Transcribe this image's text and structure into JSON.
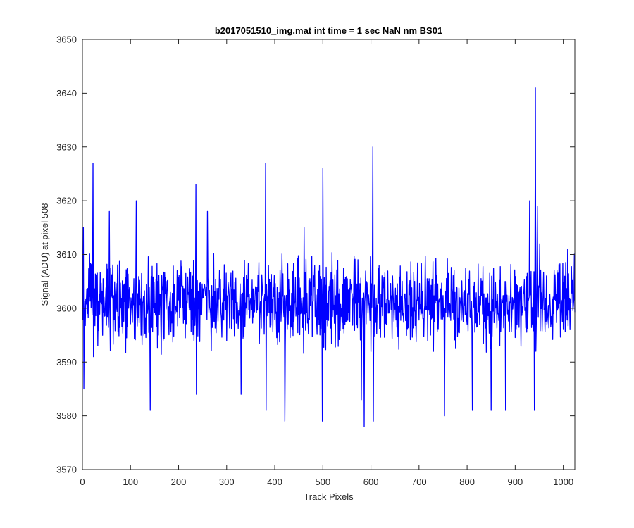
{
  "chart_data": {
    "type": "line",
    "title": "b2017051510_img.mat int time = 1 sec  NaN nm BS01",
    "xlabel": "Track Pixels",
    "ylabel": "Signal (ADU) at pixel 508",
    "xlim": [
      0,
      1024
    ],
    "ylim": [
      3570,
      3650
    ],
    "xticks": [
      0,
      100,
      200,
      300,
      400,
      500,
      600,
      700,
      800,
      900,
      1000
    ],
    "yticks": [
      3570,
      3580,
      3590,
      3600,
      3610,
      3620,
      3630,
      3640,
      3650
    ],
    "grid": false,
    "legend": "none",
    "series": [
      {
        "color": "#0000ff",
        "x_start": 1,
        "x_step": 1,
        "baseline": 3601,
        "spread": 5.5,
        "seed": 508,
        "peaks": [
          {
            "x": 2,
            "y": 3615
          },
          {
            "x": 3,
            "y": 3585
          },
          {
            "x": 22,
            "y": 3627
          },
          {
            "x": 23,
            "y": 3591
          },
          {
            "x": 56,
            "y": 3618
          },
          {
            "x": 112,
            "y": 3620
          },
          {
            "x": 141,
            "y": 3581
          },
          {
            "x": 236,
            "y": 3623
          },
          {
            "x": 237,
            "y": 3584
          },
          {
            "x": 260,
            "y": 3618
          },
          {
            "x": 330,
            "y": 3584
          },
          {
            "x": 381,
            "y": 3627
          },
          {
            "x": 382,
            "y": 3581
          },
          {
            "x": 421,
            "y": 3579
          },
          {
            "x": 461,
            "y": 3615
          },
          {
            "x": 499,
            "y": 3579
          },
          {
            "x": 500,
            "y": 3626
          },
          {
            "x": 580,
            "y": 3583
          },
          {
            "x": 586,
            "y": 3578
          },
          {
            "x": 604,
            "y": 3630
          },
          {
            "x": 605,
            "y": 3579
          },
          {
            "x": 753,
            "y": 3580
          },
          {
            "x": 811,
            "y": 3581
          },
          {
            "x": 850,
            "y": 3581
          },
          {
            "x": 880,
            "y": 3581
          },
          {
            "x": 930,
            "y": 3620
          },
          {
            "x": 940,
            "y": 3581
          },
          {
            "x": 942,
            "y": 3641
          },
          {
            "x": 943,
            "y": 3592
          },
          {
            "x": 946,
            "y": 3619
          },
          {
            "x": 951,
            "y": 3612
          },
          {
            "x": 1009,
            "y": 3611
          }
        ]
      }
    ]
  }
}
